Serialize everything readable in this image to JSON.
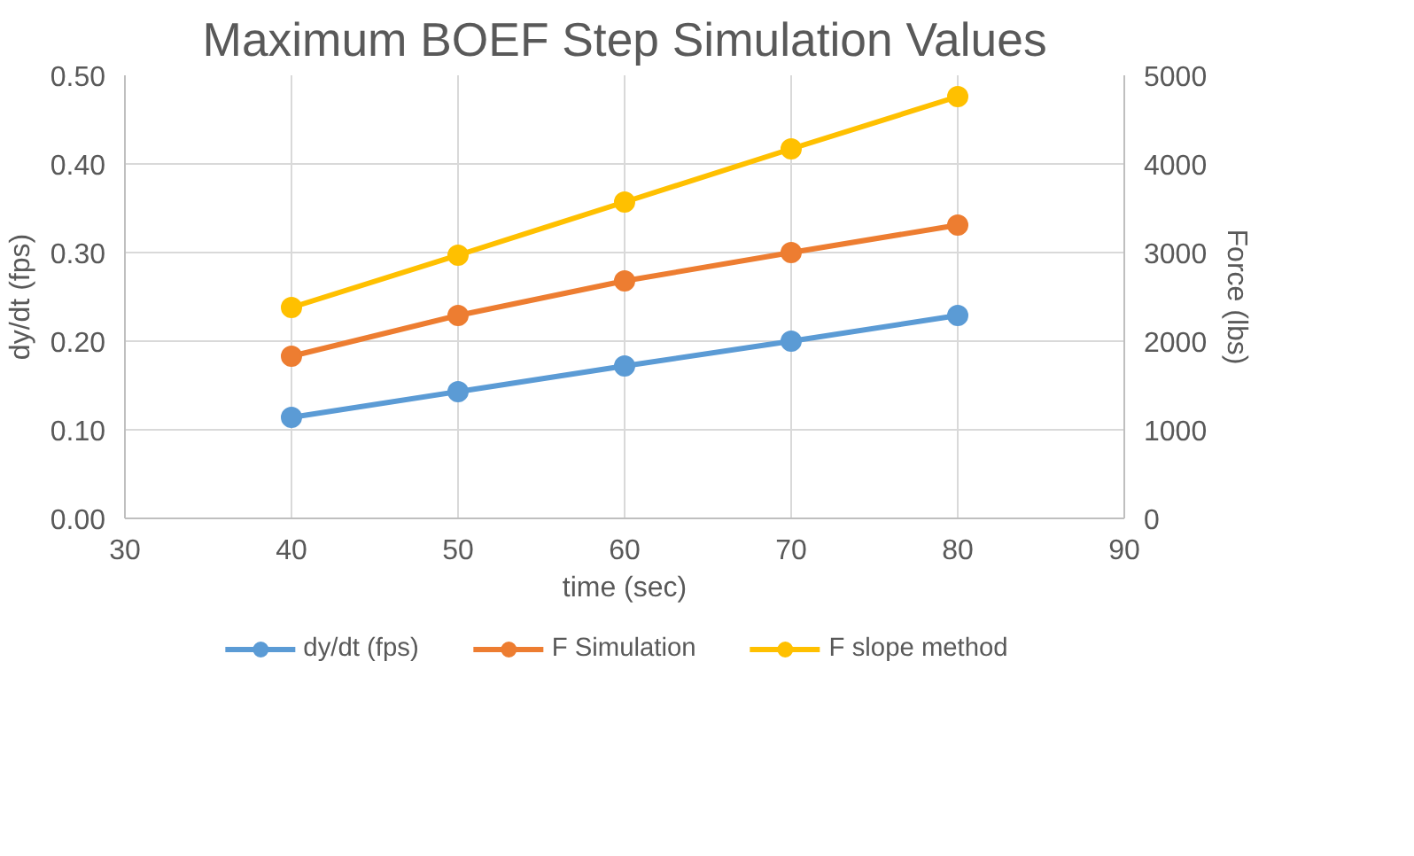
{
  "chart_data": {
    "type": "line",
    "title": "Maximum BOEF Step Simulation Values",
    "xlabel": "time (sec)",
    "ylabel": "dy/dt (fps)",
    "y2label": "Force (lbs)",
    "x": [
      40,
      50,
      60,
      70,
      80
    ],
    "series": [
      {
        "name": "dy/dt (fps)",
        "color": "#5b9bd5",
        "values": [
          0.114,
          0.143,
          0.172,
          0.2,
          0.229
        ]
      },
      {
        "name": "F Simulation",
        "color": "#ed7d31",
        "axis": "y2",
        "values": [
          1830,
          2290,
          2680,
          3000,
          3310
        ]
      },
      {
        "name": "F slope method",
        "color": "#ffc000",
        "axis": "y2",
        "values": [
          2380,
          2970,
          3570,
          4170,
          4760
        ]
      }
    ],
    "xlim": [
      30,
      90
    ],
    "xticks": [
      30,
      40,
      50,
      60,
      70,
      80,
      90
    ],
    "ylim": [
      0,
      0.5
    ],
    "yticks": [
      {
        "value": 0,
        "label": "0.00"
      },
      {
        "value": 0.1,
        "label": "0.10"
      },
      {
        "value": 0.2,
        "label": "0.20"
      },
      {
        "value": 0.3,
        "label": "0.30"
      },
      {
        "value": 0.4,
        "label": "0.40"
      },
      {
        "value": 0.5,
        "label": "0.50"
      }
    ],
    "y2lim": [
      0,
      5000
    ],
    "y2ticks": [
      0,
      1000,
      2000,
      3000,
      4000,
      5000
    ],
    "grid": true,
    "legend": "bottom",
    "marker": "circle",
    "line_style": "solid"
  }
}
